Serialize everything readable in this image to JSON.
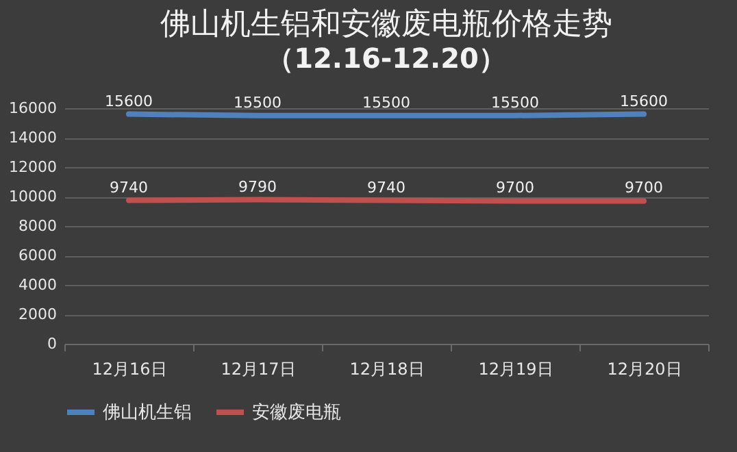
{
  "chart_data": {
    "type": "line",
    "title": "佛山机生铝和安徽废电瓶价格走势",
    "subtitle": "（12.16-12.20）",
    "categories": [
      "12月16日",
      "12月17日",
      "12月18日",
      "12月19日",
      "12月20日"
    ],
    "series": [
      {
        "name": "佛山机生铝",
        "color": "#4f81bd",
        "values": [
          15600,
          15500,
          15500,
          15500,
          15600
        ]
      },
      {
        "name": "安徽废电瓶",
        "color": "#c0504d",
        "values": [
          9740,
          9790,
          9740,
          9700,
          9700
        ]
      }
    ],
    "ylim": [
      0,
      16000
    ],
    "yticks": [
      0,
      2000,
      4000,
      6000,
      8000,
      10000,
      12000,
      14000,
      16000
    ],
    "grid": "y",
    "legend": "bottom",
    "data_labels": true
  }
}
